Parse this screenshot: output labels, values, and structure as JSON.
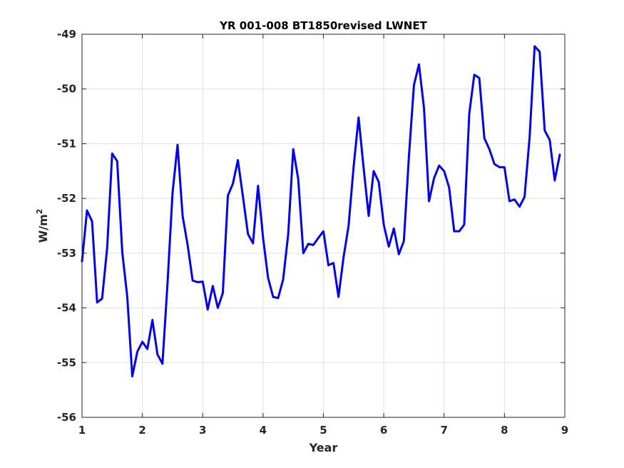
{
  "chart_data": {
    "type": "line",
    "title": "YR 001-008 BT1850revised LWNET",
    "xlabel": "Year",
    "ylabel_main": "W/m",
    "ylabel_sup": "2",
    "xlim": [
      1,
      9
    ],
    "ylim": [
      -56,
      -49
    ],
    "xticks": [
      1,
      2,
      3,
      4,
      5,
      6,
      7,
      8,
      9
    ],
    "yticks": [
      -56,
      -55,
      -54,
      -53,
      -52,
      -51,
      -50,
      -49
    ],
    "grid": true,
    "line_color": "#0000ee",
    "series": [
      {
        "x": [
          1.0,
          1.083,
          1.167,
          1.25,
          1.333,
          1.417,
          1.5,
          1.583,
          1.667,
          1.75,
          1.833,
          1.917,
          2.0,
          2.083,
          2.167,
          2.25,
          2.333,
          2.417,
          2.5,
          2.583,
          2.667,
          2.75,
          2.833,
          2.917,
          3.0,
          3.083,
          3.167,
          3.25,
          3.333,
          3.417,
          3.5,
          3.583,
          3.667,
          3.75,
          3.833,
          3.917,
          4.0,
          4.083,
          4.167,
          4.25,
          4.333,
          4.417,
          4.5,
          4.583,
          4.667,
          4.75,
          4.833,
          4.917,
          5.0,
          5.083,
          5.167,
          5.25,
          5.333,
          5.417,
          5.5,
          5.583,
          5.667,
          5.75,
          5.833,
          5.917,
          6.0,
          6.083,
          6.167,
          6.25,
          6.333,
          6.417,
          6.5,
          6.583,
          6.667,
          6.75,
          6.833,
          6.917,
          7.0,
          7.083,
          7.167,
          7.25,
          7.333,
          7.417,
          7.5,
          7.583,
          7.667,
          7.75,
          7.833,
          7.917,
          8.0,
          8.083,
          8.167,
          8.25,
          8.333,
          8.417,
          8.5,
          8.583,
          8.667,
          8.75,
          8.833,
          8.917
        ],
        "y": [
          -53.15,
          -52.22,
          -52.42,
          -53.9,
          -53.83,
          -52.9,
          -51.18,
          -51.32,
          -52.98,
          -53.8,
          -55.25,
          -54.8,
          -54.62,
          -54.75,
          -54.22,
          -54.85,
          -55.02,
          -53.55,
          -51.9,
          -51.02,
          -52.32,
          -52.85,
          -53.5,
          -53.53,
          -53.52,
          -54.03,
          -53.6,
          -54.0,
          -53.73,
          -51.95,
          -51.73,
          -51.3,
          -51.97,
          -52.65,
          -52.82,
          -51.77,
          -52.72,
          -53.45,
          -53.8,
          -53.82,
          -53.48,
          -52.65,
          -51.1,
          -51.65,
          -53.0,
          -52.83,
          -52.85,
          -52.72,
          -52.6,
          -53.22,
          -53.18,
          -53.8,
          -53.08,
          -52.5,
          -51.43,
          -50.52,
          -51.45,
          -52.32,
          -51.5,
          -51.7,
          -52.48,
          -52.88,
          -52.55,
          -53.02,
          -52.78,
          -51.23,
          -49.93,
          -49.55,
          -50.35,
          -52.05,
          -51.63,
          -51.4,
          -51.5,
          -51.8,
          -52.6,
          -52.6,
          -52.48,
          -50.45,
          -49.74,
          -49.8,
          -50.9,
          -51.1,
          -51.37,
          -51.43,
          -51.43,
          -52.05,
          -52.02,
          -52.15,
          -51.97,
          -50.88,
          -49.22,
          -49.32,
          -50.76,
          -50.93,
          -51.67,
          -51.2
        ]
      }
    ]
  }
}
